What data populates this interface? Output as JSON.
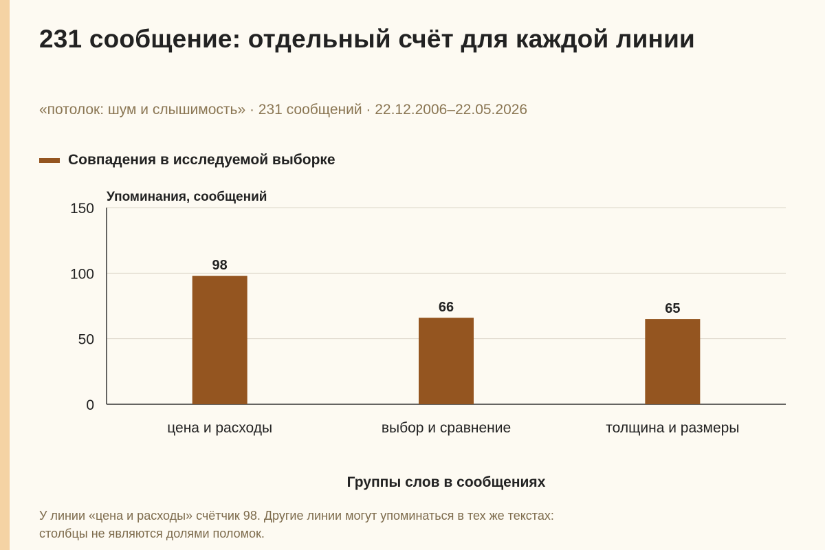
{
  "title": "231 сообщение: отдельный счёт для каждой линии",
  "subtitle": "«потолок: шум и слышимость» · 231 сообщений · 22.12.2006–22.05.2026",
  "footnote": {
    "line1": "У линии «цена и расходы» счётчик 98. Другие линии могут упоминаться в тех же текстах:",
    "line2": "столбцы не являются долями поломок."
  },
  "colors": {
    "background": "#fdfaf2",
    "accent_stripe": "#f5d3a4",
    "bar": "#945520",
    "grid": "#dcd6c8",
    "axis": "#333333"
  },
  "chart_data": {
    "type": "bar",
    "categories": [
      "цена и расходы",
      "выбор и сравнение",
      "толщина и размеры"
    ],
    "series": [
      {
        "name": "Совпадения в исследуемой выборке",
        "values": [
          98,
          66,
          65
        ]
      }
    ],
    "data_labels": [
      "98",
      "66",
      "65"
    ],
    "xlabel": "Группы слов в сообщениях",
    "ylabel": "Упоминания, сообщений",
    "ylim": [
      0,
      150
    ],
    "yticks": [
      "0",
      "50",
      "100",
      "150"
    ],
    "grid": true,
    "legend_position": "top-left"
  }
}
